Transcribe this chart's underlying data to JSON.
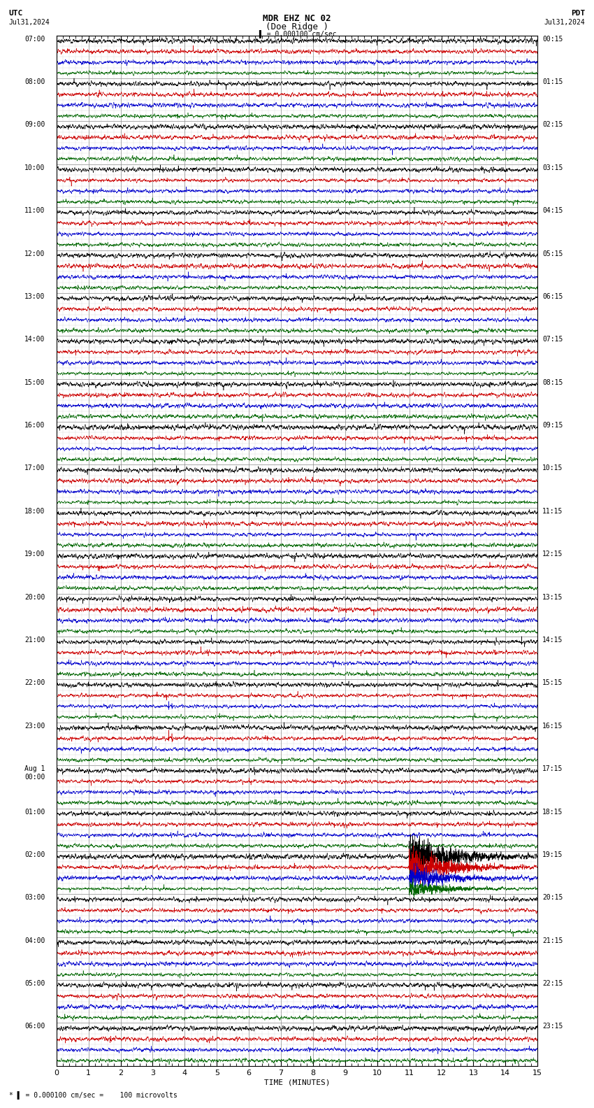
{
  "title_line1": "MDR EHZ NC 02",
  "title_line2": "(Doe Ridge )",
  "scale_text": "= 0.000100 cm/sec",
  "left_header": "UTC",
  "right_header": "PDT",
  "left_date": "Jul31,2024",
  "right_date": "Jul31,2024",
  "footer_text": "= 0.000100 cm/sec =    100 microvolts",
  "xlabel": "TIME (MINUTES)",
  "xmin": 0,
  "xmax": 15,
  "background_color": "#ffffff",
  "trace_colors": [
    "#000000",
    "#cc0000",
    "#0000cc",
    "#006600"
  ],
  "utc_labels": [
    "07:00",
    "08:00",
    "09:00",
    "10:00",
    "11:00",
    "12:00",
    "13:00",
    "14:00",
    "15:00",
    "16:00",
    "17:00",
    "18:00",
    "19:00",
    "20:00",
    "21:00",
    "22:00",
    "23:00",
    "Aug 1\n00:00",
    "01:00",
    "02:00",
    "03:00",
    "04:00",
    "05:00",
    "06:00"
  ],
  "pdt_labels": [
    "00:15",
    "01:15",
    "02:15",
    "03:15",
    "04:15",
    "05:15",
    "06:15",
    "07:15",
    "08:15",
    "09:15",
    "10:15",
    "11:15",
    "12:15",
    "13:15",
    "14:15",
    "15:15",
    "16:15",
    "17:15",
    "18:15",
    "19:15",
    "20:15",
    "21:15",
    "22:15",
    "23:15"
  ],
  "n_rows": 24,
  "traces_per_row": 4,
  "noise_amplitude": 0.35,
  "grid_color": "#888888",
  "font_size_title": 9,
  "font_size_labels": 7,
  "font_size_axis": 8
}
